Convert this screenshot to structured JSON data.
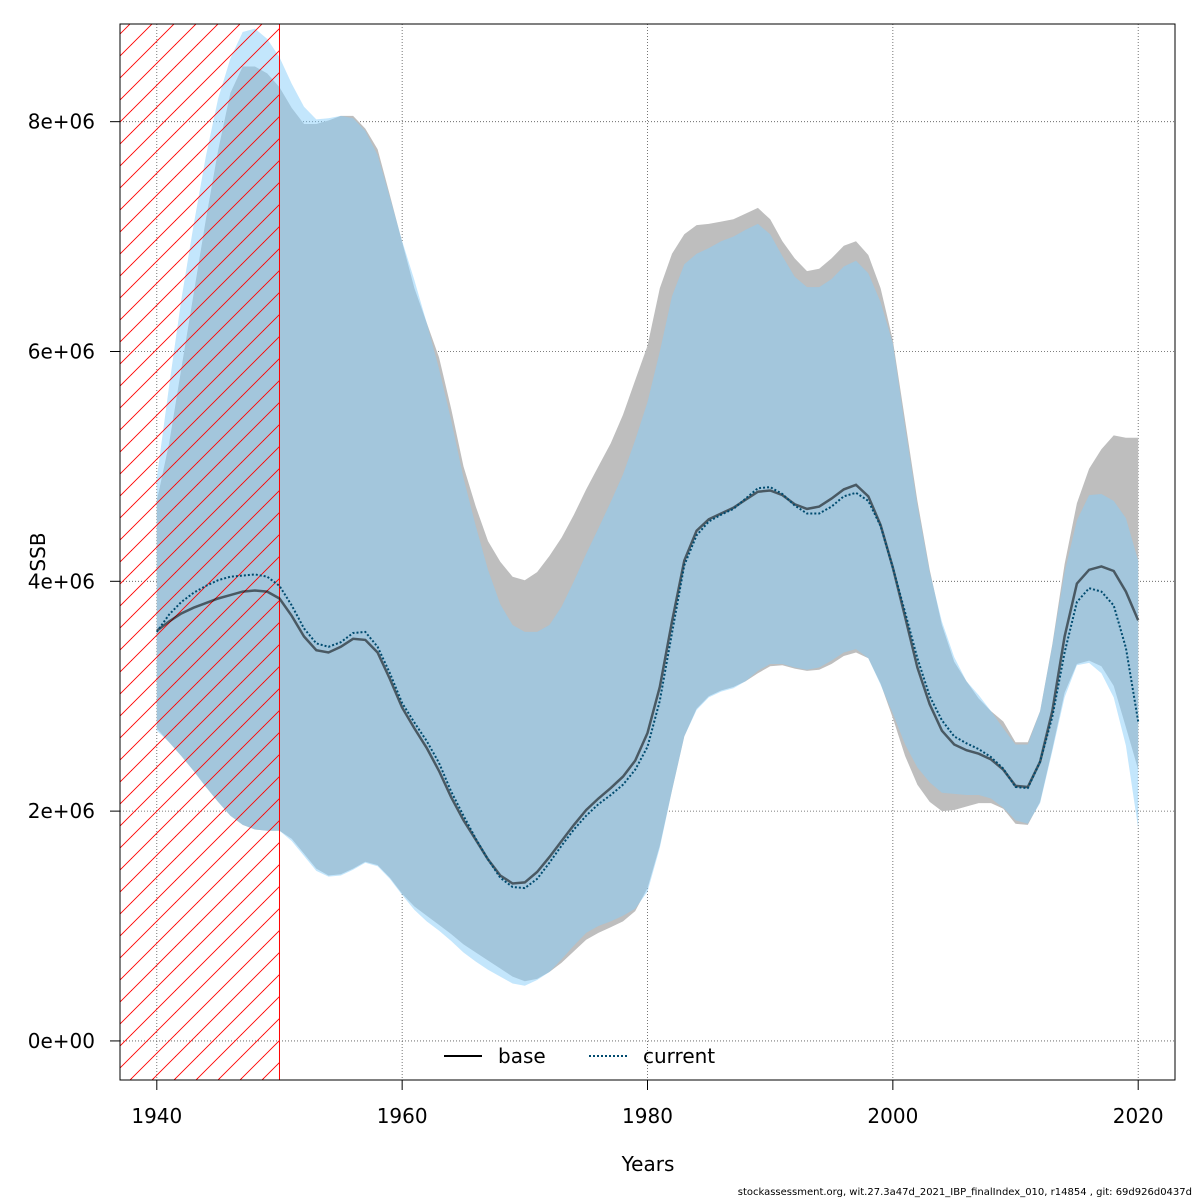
{
  "chart_data": {
    "type": "area",
    "title": "",
    "xlabel": "Years",
    "ylabel": "SSB",
    "xlim": [
      1937,
      2023
    ],
    "ylim": [
      -340000,
      8850000
    ],
    "xticks": [
      1940,
      1960,
      1980,
      2000,
      2020
    ],
    "yticks": [
      0,
      2000000,
      4000000,
      6000000,
      8000000
    ],
    "ytick_labels": [
      "0e+00",
      "2e+06",
      "4e+06",
      "6e+06",
      "8e+06"
    ],
    "grid": true,
    "legend_position": "bottom-center",
    "shaded_region": {
      "x_from": 1937,
      "x_to": 1950,
      "pattern": "hatched",
      "color": "#ff0000"
    },
    "x": [
      1940,
      1941,
      1942,
      1943,
      1944,
      1945,
      1946,
      1947,
      1948,
      1949,
      1950,
      1951,
      1952,
      1953,
      1954,
      1955,
      1956,
      1957,
      1958,
      1959,
      1960,
      1961,
      1962,
      1963,
      1964,
      1965,
      1966,
      1967,
      1968,
      1969,
      1970,
      1971,
      1972,
      1973,
      1974,
      1975,
      1976,
      1977,
      1978,
      1979,
      1980,
      1981,
      1982,
      1983,
      1984,
      1985,
      1986,
      1987,
      1988,
      1989,
      1990,
      1991,
      1992,
      1993,
      1994,
      1995,
      1996,
      1997,
      1998,
      1999,
      2000,
      2001,
      2002,
      2003,
      2004,
      2005,
      2006,
      2007,
      2008,
      2009,
      2010,
      2011,
      2012,
      2013,
      2014,
      2015,
      2016,
      2017,
      2018,
      2019,
      2020
    ],
    "series": [
      {
        "name": "base",
        "line_style": "solid",
        "line_color": "#000000",
        "band_color": "#bebebe",
        "values": [
          3570000,
          3650000,
          3720000,
          3770000,
          3810000,
          3850000,
          3880000,
          3910000,
          3920000,
          3910000,
          3850000,
          3700000,
          3520000,
          3400000,
          3380000,
          3430000,
          3500000,
          3490000,
          3380000,
          3150000,
          2900000,
          2720000,
          2550000,
          2350000,
          2120000,
          1920000,
          1750000,
          1580000,
          1440000,
          1370000,
          1380000,
          1470000,
          1600000,
          1740000,
          1880000,
          2010000,
          2110000,
          2200000,
          2300000,
          2440000,
          2680000,
          3080000,
          3650000,
          4180000,
          4440000,
          4540000,
          4590000,
          4640000,
          4710000,
          4780000,
          4790000,
          4750000,
          4670000,
          4630000,
          4650000,
          4720000,
          4800000,
          4840000,
          4740000,
          4490000,
          4120000,
          3690000,
          3250000,
          2930000,
          2700000,
          2580000,
          2530000,
          2500000,
          2450000,
          2360000,
          2220000,
          2210000,
          2430000,
          2870000,
          3520000,
          3980000,
          4100000,
          4130000,
          4090000,
          3910000,
          3660000
        ],
        "lower": [
          2720000,
          2600000,
          2480000,
          2350000,
          2210000,
          2080000,
          1960000,
          1880000,
          1840000,
          1830000,
          1830000,
          1760000,
          1630000,
          1500000,
          1440000,
          1450000,
          1500000,
          1560000,
          1530000,
          1420000,
          1280000,
          1170000,
          1090000,
          1010000,
          930000,
          840000,
          770000,
          700000,
          630000,
          560000,
          520000,
          540000,
          600000,
          680000,
          780000,
          880000,
          940000,
          990000,
          1040000,
          1130000,
          1330000,
          1700000,
          2180000,
          2650000,
          2890000,
          3000000,
          3050000,
          3080000,
          3130000,
          3200000,
          3260000,
          3270000,
          3240000,
          3220000,
          3230000,
          3280000,
          3350000,
          3380000,
          3330000,
          3110000,
          2810000,
          2480000,
          2230000,
          2080000,
          2000000,
          2010000,
          2040000,
          2070000,
          2070000,
          2020000,
          1890000,
          1880000,
          2080000,
          2540000,
          3030000,
          3280000,
          3310000,
          3260000,
          3090000,
          2730000,
          2360000
        ],
        "upper": [
          4700000,
          5200000,
          5850000,
          6500000,
          7150000,
          7750000,
          8250000,
          8480000,
          8480000,
          8420000,
          8300000,
          8120000,
          7980000,
          7980000,
          8010000,
          8050000,
          8050000,
          7940000,
          7760000,
          7360000,
          6950000,
          6550000,
          6250000,
          5950000,
          5500000,
          5000000,
          4650000,
          4350000,
          4170000,
          4040000,
          4010000,
          4080000,
          4220000,
          4380000,
          4580000,
          4800000,
          5000000,
          5200000,
          5450000,
          5750000,
          6050000,
          6550000,
          6850000,
          7020000,
          7100000,
          7110000,
          7130000,
          7150000,
          7200000,
          7250000,
          7150000,
          6960000,
          6810000,
          6700000,
          6720000,
          6810000,
          6920000,
          6960000,
          6840000,
          6550000,
          6100000,
          5400000,
          4700000,
          4100000,
          3620000,
          3300000,
          3130000,
          2980000,
          2870000,
          2780000,
          2600000,
          2600000,
          2870000,
          3450000,
          4150000,
          4680000,
          4980000,
          5150000,
          5270000,
          5250000,
          5250000
        ]
      },
      {
        "name": "current",
        "line_style": "dotted",
        "line_color": "#004b6f",
        "band_color": "#87cefa",
        "values": [
          3560000,
          3710000,
          3820000,
          3900000,
          3960000,
          4010000,
          4040000,
          4050000,
          4060000,
          4040000,
          3960000,
          3790000,
          3590000,
          3460000,
          3430000,
          3470000,
          3550000,
          3560000,
          3430000,
          3200000,
          2940000,
          2770000,
          2610000,
          2420000,
          2170000,
          1960000,
          1760000,
          1580000,
          1420000,
          1340000,
          1330000,
          1410000,
          1550000,
          1700000,
          1840000,
          1960000,
          2060000,
          2140000,
          2230000,
          2360000,
          2560000,
          2960000,
          3550000,
          4140000,
          4400000,
          4520000,
          4580000,
          4630000,
          4720000,
          4810000,
          4820000,
          4760000,
          4660000,
          4590000,
          4590000,
          4650000,
          4740000,
          4770000,
          4700000,
          4480000,
          4120000,
          3730000,
          3330000,
          3000000,
          2790000,
          2650000,
          2590000,
          2540000,
          2470000,
          2370000,
          2210000,
          2200000,
          2430000,
          2820000,
          3380000,
          3820000,
          3940000,
          3910000,
          3790000,
          3420000,
          2780000
        ],
        "lower": [
          2700000,
          2600000,
          2480000,
          2350000,
          2210000,
          2080000,
          1960000,
          1880000,
          1840000,
          1830000,
          1830000,
          1740000,
          1610000,
          1480000,
          1430000,
          1440000,
          1490000,
          1550000,
          1520000,
          1410000,
          1270000,
          1140000,
          1040000,
          960000,
          870000,
          770000,
          690000,
          620000,
          560000,
          500000,
          480000,
          530000,
          600000,
          710000,
          830000,
          940000,
          1000000,
          1040000,
          1090000,
          1150000,
          1300000,
          1680000,
          2180000,
          2650000,
          2880000,
          2990000,
          3040000,
          3070000,
          3130000,
          3220000,
          3280000,
          3280000,
          3250000,
          3230000,
          3250000,
          3310000,
          3380000,
          3410000,
          3330000,
          3100000,
          2850000,
          2580000,
          2380000,
          2250000,
          2160000,
          2150000,
          2140000,
          2140000,
          2110000,
          2030000,
          1920000,
          1890000,
          2070000,
          2520000,
          2990000,
          3270000,
          3290000,
          3200000,
          2990000,
          2570000,
          1850000
        ],
        "upper": [
          4900000,
          5700000,
          6450000,
          7100000,
          7700000,
          8200000,
          8550000,
          8780000,
          8810000,
          8720000,
          8560000,
          8330000,
          8130000,
          8020000,
          8030000,
          8050000,
          8030000,
          7920000,
          7710000,
          7340000,
          6960000,
          6620000,
          6250000,
          5850000,
          5400000,
          4900000,
          4480000,
          4100000,
          3800000,
          3620000,
          3560000,
          3560000,
          3620000,
          3780000,
          4000000,
          4240000,
          4460000,
          4690000,
          4930000,
          5230000,
          5560000,
          6000000,
          6480000,
          6760000,
          6850000,
          6900000,
          6960000,
          7000000,
          7060000,
          7110000,
          7020000,
          6830000,
          6650000,
          6560000,
          6560000,
          6630000,
          6740000,
          6790000,
          6680000,
          6430000,
          6070000,
          5340000,
          4660000,
          4080000,
          3650000,
          3340000,
          3130000,
          3010000,
          2870000,
          2720000,
          2580000,
          2580000,
          2870000,
          3440000,
          4080000,
          4530000,
          4750000,
          4760000,
          4700000,
          4550000,
          4180000
        ]
      }
    ]
  },
  "footer": {
    "text": "stockassessment.org, wit.27.3a47d_2021_IBP_finalIndex_010, r14854 , git: 69d926d0437d"
  }
}
